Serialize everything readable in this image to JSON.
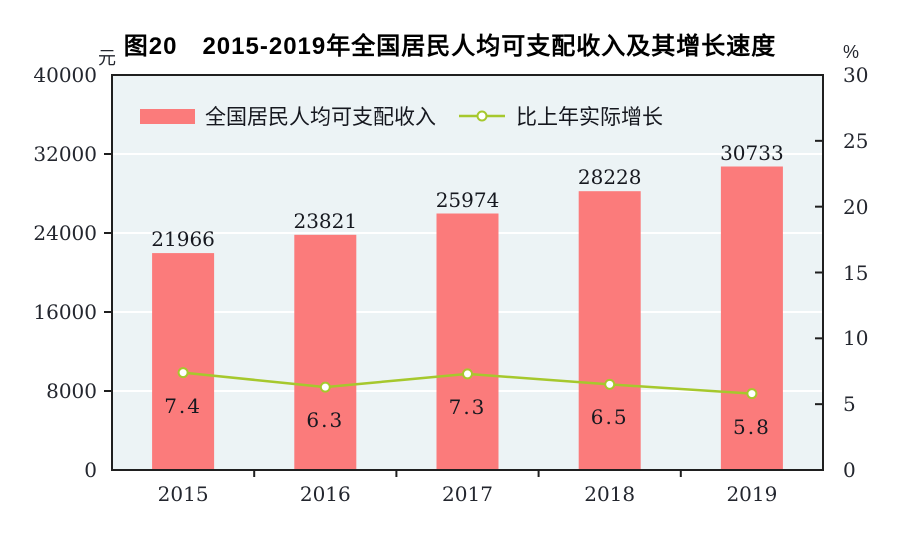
{
  "chart_data": {
    "type": "bar",
    "title": "图20　2015-2019年全国居民人均可支配收入及其增长速度",
    "categories": [
      "2015",
      "2016",
      "2017",
      "2018",
      "2019"
    ],
    "series": [
      {
        "name": "全国居民人均可支配收入",
        "type": "bar",
        "axis": "left",
        "values": [
          21966,
          23821,
          25974,
          28228,
          30733
        ],
        "color": "#FB7B7B"
      },
      {
        "name": "比上年实际增长",
        "type": "line",
        "axis": "right",
        "values": [
          7.4,
          6.3,
          7.3,
          6.5,
          5.8
        ],
        "color": "#A6C82D",
        "marker": "circle-white-fill"
      }
    ],
    "y_left": {
      "unit": "元",
      "min": 0,
      "max": 40000,
      "tick_step": 8000,
      "ticks": [
        0,
        8000,
        16000,
        24000,
        32000,
        40000
      ]
    },
    "y_right": {
      "unit": "%",
      "min": 0,
      "max": 30,
      "tick_step": 5,
      "ticks": [
        0,
        5,
        10,
        15,
        20,
        25,
        30
      ]
    },
    "grid": "horizontal-white-at-left-ticks",
    "legend_position": "top-inside",
    "colors": {
      "plot_background": "#ECF3F5",
      "frame": "#1f1f1f",
      "gridline": "#ffffff",
      "text": "#23262e",
      "title_text": "#000000"
    }
  }
}
